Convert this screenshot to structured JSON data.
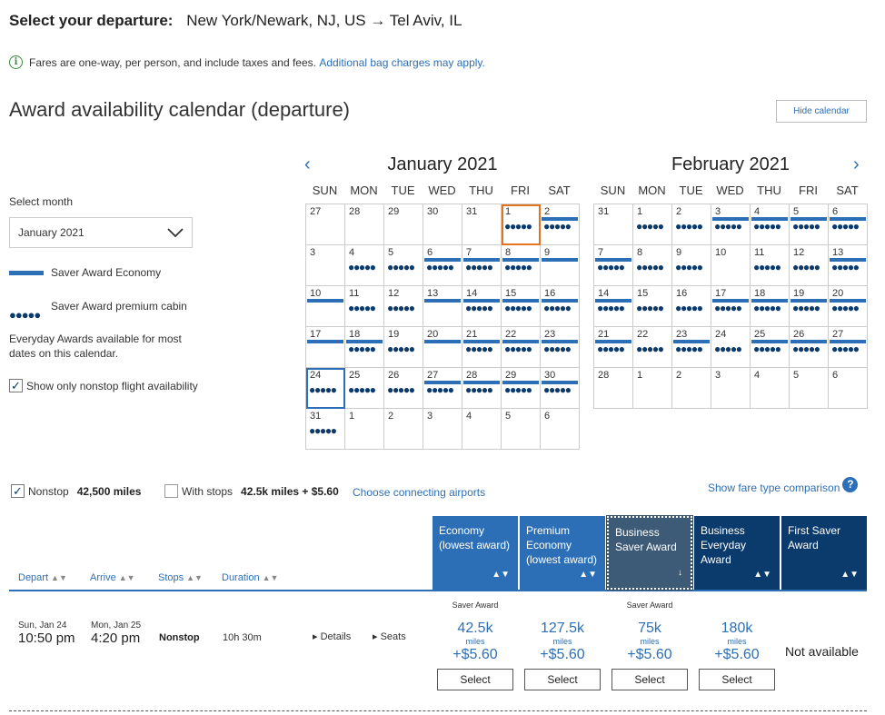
{
  "header": {
    "label": "Select your departure:",
    "route": "New York/Newark, NJ, US → Tel Aviv, IL"
  },
  "info": {
    "text": "Fares are one-way, per person, and include taxes and fees.",
    "link": "Additional bag charges may apply."
  },
  "calendar_title": "Award availability calendar (departure)",
  "hide_calendar": "Hide calendar",
  "left_panel": {
    "select_month_label": "Select month",
    "selected_month": "January 2021",
    "legend_economy": "Saver Award Economy",
    "legend_premium": "Saver Award premium cabin",
    "legend_dots": "●●●●●",
    "everyday_note": "Everyday Awards available for most dates on this calendar.",
    "nonstop_only": "Show only nonstop flight availability"
  },
  "weekdays": [
    "SUN",
    "MON",
    "TUE",
    "WED",
    "THU",
    "FRI",
    "SAT"
  ],
  "calendars": [
    {
      "title": "January 2021",
      "days": [
        {
          "d": "27",
          "e": false,
          "p": false
        },
        {
          "d": "28",
          "e": false,
          "p": false
        },
        {
          "d": "29",
          "e": false,
          "p": false
        },
        {
          "d": "30",
          "e": false,
          "p": false
        },
        {
          "d": "31",
          "e": false,
          "p": false
        },
        {
          "d": "1",
          "e": false,
          "p": true,
          "sel": true
        },
        {
          "d": "2",
          "e": true,
          "p": true
        },
        {
          "d": "3",
          "e": false,
          "p": false
        },
        {
          "d": "4",
          "e": false,
          "p": true
        },
        {
          "d": "5",
          "e": false,
          "p": true
        },
        {
          "d": "6",
          "e": true,
          "p": true
        },
        {
          "d": "7",
          "e": true,
          "p": true
        },
        {
          "d": "8",
          "e": true,
          "p": true
        },
        {
          "d": "9",
          "e": true,
          "p": false
        },
        {
          "d": "10",
          "e": true,
          "p": false
        },
        {
          "d": "11",
          "e": false,
          "p": true
        },
        {
          "d": "12",
          "e": false,
          "p": true
        },
        {
          "d": "13",
          "e": true,
          "p": false
        },
        {
          "d": "14",
          "e": true,
          "p": true
        },
        {
          "d": "15",
          "e": true,
          "p": true
        },
        {
          "d": "16",
          "e": true,
          "p": true
        },
        {
          "d": "17",
          "e": true,
          "p": false
        },
        {
          "d": "18",
          "e": true,
          "p": true
        },
        {
          "d": "19",
          "e": false,
          "p": true
        },
        {
          "d": "20",
          "e": true,
          "p": false
        },
        {
          "d": "21",
          "e": true,
          "p": true
        },
        {
          "d": "22",
          "e": true,
          "p": true
        },
        {
          "d": "23",
          "e": true,
          "p": true
        },
        {
          "d": "24",
          "e": false,
          "p": true,
          "ret": true
        },
        {
          "d": "25",
          "e": false,
          "p": true
        },
        {
          "d": "26",
          "e": false,
          "p": true
        },
        {
          "d": "27",
          "e": true,
          "p": true
        },
        {
          "d": "28",
          "e": true,
          "p": true
        },
        {
          "d": "29",
          "e": true,
          "p": true
        },
        {
          "d": "30",
          "e": true,
          "p": true
        },
        {
          "d": "31",
          "e": false,
          "p": true
        },
        {
          "d": "1",
          "e": false,
          "p": false
        },
        {
          "d": "2",
          "e": false,
          "p": false
        },
        {
          "d": "3",
          "e": false,
          "p": false
        },
        {
          "d": "4",
          "e": false,
          "p": false
        },
        {
          "d": "5",
          "e": false,
          "p": false
        },
        {
          "d": "6",
          "e": false,
          "p": false
        }
      ]
    },
    {
      "title": "February 2021",
      "days": [
        {
          "d": "31",
          "e": false,
          "p": false
        },
        {
          "d": "1",
          "e": false,
          "p": true
        },
        {
          "d": "2",
          "e": false,
          "p": true
        },
        {
          "d": "3",
          "e": true,
          "p": true
        },
        {
          "d": "4",
          "e": true,
          "p": true
        },
        {
          "d": "5",
          "e": true,
          "p": true
        },
        {
          "d": "6",
          "e": true,
          "p": true
        },
        {
          "d": "7",
          "e": true,
          "p": true
        },
        {
          "d": "8",
          "e": false,
          "p": true
        },
        {
          "d": "9",
          "e": false,
          "p": true
        },
        {
          "d": "10",
          "e": false,
          "p": false
        },
        {
          "d": "11",
          "e": false,
          "p": true
        },
        {
          "d": "12",
          "e": false,
          "p": true
        },
        {
          "d": "13",
          "e": true,
          "p": true
        },
        {
          "d": "14",
          "e": true,
          "p": true
        },
        {
          "d": "15",
          "e": false,
          "p": true
        },
        {
          "d": "16",
          "e": false,
          "p": true
        },
        {
          "d": "17",
          "e": true,
          "p": true
        },
        {
          "d": "18",
          "e": true,
          "p": true
        },
        {
          "d": "19",
          "e": true,
          "p": true
        },
        {
          "d": "20",
          "e": true,
          "p": true
        },
        {
          "d": "21",
          "e": true,
          "p": true
        },
        {
          "d": "22",
          "e": false,
          "p": true
        },
        {
          "d": "23",
          "e": true,
          "p": true
        },
        {
          "d": "24",
          "e": false,
          "p": true
        },
        {
          "d": "25",
          "e": true,
          "p": true
        },
        {
          "d": "26",
          "e": true,
          "p": true
        },
        {
          "d": "27",
          "e": true,
          "p": true
        },
        {
          "d": "28",
          "e": false,
          "p": false
        },
        {
          "d": "1",
          "e": false,
          "p": false
        },
        {
          "d": "2",
          "e": false,
          "p": false
        },
        {
          "d": "3",
          "e": false,
          "p": false
        },
        {
          "d": "4",
          "e": false,
          "p": false
        },
        {
          "d": "5",
          "e": false,
          "p": false
        },
        {
          "d": "6",
          "e": false,
          "p": false
        }
      ]
    }
  ],
  "filters": {
    "nonstop_label": "Nonstop",
    "nonstop_miles": "42,500 miles",
    "stops_label": "With stops",
    "stops_price": "42.5k miles + $5.60",
    "connecting_link": "Choose connecting airports",
    "compare_link": "Show fare type comparison"
  },
  "columns": {
    "depart": "Depart",
    "arrive": "Arrive",
    "stops": "Stops",
    "duration": "Duration"
  },
  "fare_columns": [
    {
      "label": "Economy (lowest award)",
      "color": "#2d6fb6"
    },
    {
      "label": "Premium Economy (lowest award)",
      "color": "#2d6fb6"
    },
    {
      "label": "Business Saver Award",
      "color": "#3d5a77"
    },
    {
      "label": "Business Everyday Award",
      "color": "#0b3a6c"
    },
    {
      "label": "First Saver Award",
      "color": "#0b3a6c"
    }
  ],
  "flight": {
    "depart_date": "Sun, Jan 24",
    "depart_time": "10:50 pm",
    "arrive_date": "Mon, Jan 25",
    "arrive_time": "4:20 pm",
    "stops": "Nonstop",
    "duration": "10h 30m",
    "details": "Details",
    "seats": "Seats",
    "fares": [
      {
        "award": "Saver Award",
        "miles": "42.5k",
        "miles_label": "miles",
        "tax": "+$5.60",
        "button": "Select"
      },
      {
        "award": "",
        "miles": "127.5k",
        "miles_label": "miles",
        "tax": "+$5.60",
        "button": "Select"
      },
      {
        "award": "Saver Award",
        "miles": "75k",
        "miles_label": "miles",
        "tax": "+$5.60",
        "button": "Select"
      },
      {
        "award": "",
        "miles": "180k",
        "miles_label": "miles",
        "tax": "+$5.60",
        "button": "Select"
      }
    ],
    "first_status": "Not available"
  }
}
